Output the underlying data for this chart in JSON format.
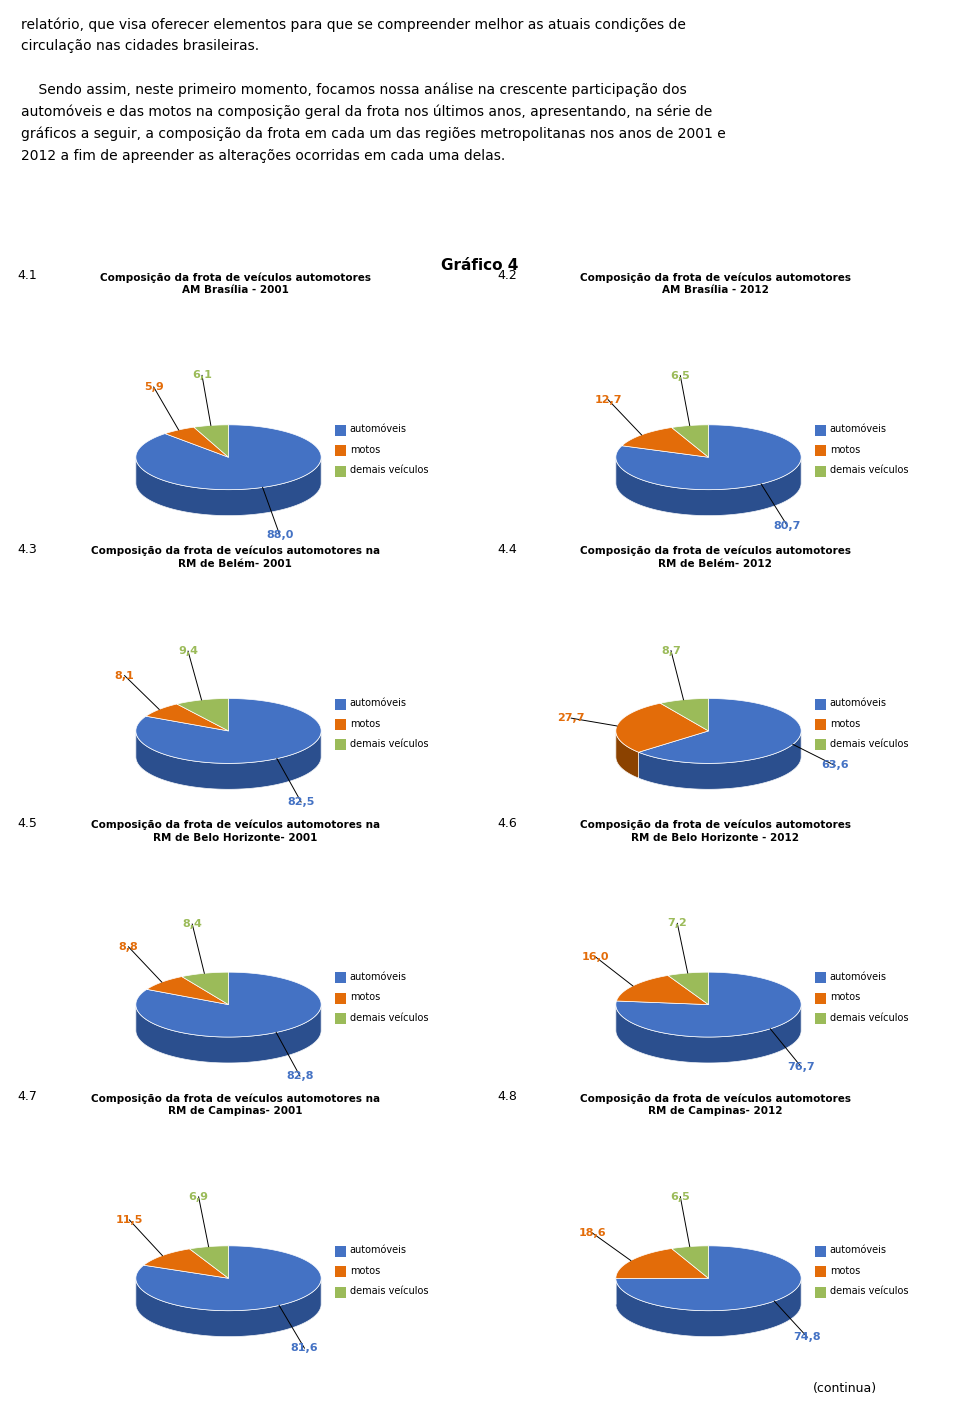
{
  "header_text": [
    "relatório, que visa oferecer elementos para que se compreender melhor as atuais condições de",
    "circulação nas cidades brasileiras.",
    "",
    "    Sendo assim, neste primeiro momento, focamos nossa análise na crescente participação dos",
    "automóveis e das motos na composição geral da frota nos últimos anos, apresentando, na série de",
    "gráficos a seguir, a composição da frota em cada um das regiões metropolitanas nos anos de 2001 e",
    "2012 a fim de apreender as alterações ocorridas em cada uma delas."
  ],
  "grafico_title": "Gráfico 4",
  "charts": [
    {
      "label": "4.1",
      "title_line1": "Composição da frota de veículos automotores",
      "title_line2": "AM Brasília - 2001",
      "values": [
        88.0,
        5.9,
        6.1
      ],
      "labels": [
        "88,0",
        "5,9",
        "6,1"
      ]
    },
    {
      "label": "4.2",
      "title_line1": "Composição da frota de veículos automotores",
      "title_line2": "AM Brasília - 2012",
      "values": [
        80.7,
        12.7,
        6.5
      ],
      "labels": [
        "80,7",
        "12,7",
        "6,5"
      ]
    },
    {
      "label": "4.3",
      "title_line1": "Composição da frota de veículos automotores na",
      "title_line2": "RM de Belém- 2001",
      "values": [
        82.5,
        8.1,
        9.4
      ],
      "labels": [
        "82,5",
        "8,1",
        "9,4"
      ]
    },
    {
      "label": "4.4",
      "title_line1": "Composição da frota de veículos automotores",
      "title_line2": "RM de Belém- 2012",
      "values": [
        63.6,
        27.7,
        8.7
      ],
      "labels": [
        "63,6",
        "27,7",
        "8,7"
      ]
    },
    {
      "label": "4.5",
      "title_line1": "Composição da frota de veículos automotores na",
      "title_line2": "RM de Belo Horizonte- 2001",
      "values": [
        82.8,
        8.8,
        8.4
      ],
      "labels": [
        "82,8",
        "8,8",
        "8,4"
      ]
    },
    {
      "label": "4.6",
      "title_line1": "Composição da frota de veículos automotores",
      "title_line2": "RM de Belo Horizonte - 2012",
      "values": [
        76.7,
        16.0,
        7.2
      ],
      "labels": [
        "76,7",
        "16,0",
        "7,2"
      ]
    },
    {
      "label": "4.7",
      "title_line1": "Composição da frota de veículos automotores na",
      "title_line2": "RM de Campinas- 2001",
      "values": [
        81.6,
        11.5,
        6.9
      ],
      "labels": [
        "81,6",
        "11,5",
        "6,9"
      ]
    },
    {
      "label": "4.8",
      "title_line1": "Composição da frota de veículos automotores",
      "title_line2": "RM de Campinas- 2012",
      "values": [
        74.8,
        18.6,
        6.5
      ],
      "labels": [
        "74,8",
        "18,6",
        "6,5"
      ]
    }
  ],
  "legend_labels": [
    "automóveis",
    "motos",
    "demais veículos"
  ],
  "colors": [
    "#4472C4",
    "#E36C09",
    "#9BBB59"
  ],
  "dark_colors": [
    "#2B4F8E",
    "#8B4200",
    "#5A6E2A"
  ],
  "footer_text": "(continua)"
}
